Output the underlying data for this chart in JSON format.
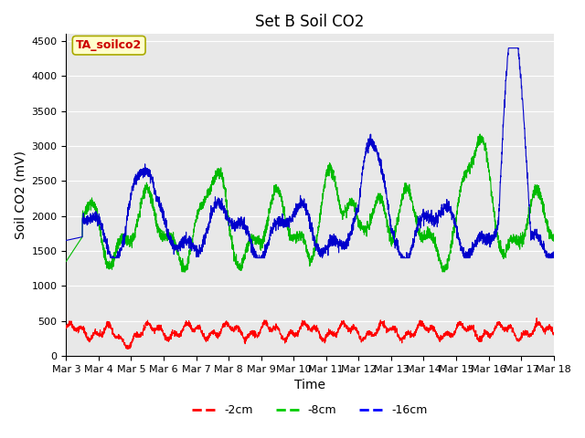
{
  "title": "Set B Soil CO2",
  "ylabel": "Soil CO2 (mV)",
  "xlabel": "Time",
  "ylim": [
    0,
    4600
  ],
  "xlim": [
    0,
    15
  ],
  "x_tick_labels": [
    "Mar 3",
    "Mar 4",
    "Mar 5",
    "Mar 6",
    "Mar 7",
    "Mar 8",
    "Mar 9",
    "Mar 10",
    "Mar 11",
    "Mar 12",
    "Mar 13",
    "Mar 14",
    "Mar 15",
    "Mar 16",
    "Mar 17",
    "Mar 18"
  ],
  "x_tick_positions": [
    0,
    1,
    2,
    3,
    4,
    5,
    6,
    7,
    8,
    9,
    10,
    11,
    12,
    13,
    14,
    15
  ],
  "legend_labels": [
    "-2cm",
    "-8cm",
    "-16cm"
  ],
  "legend_colors": [
    "#ff0000",
    "#00cc00",
    "#0000ff"
  ],
  "line_colors": [
    "#ff0000",
    "#00bb00",
    "#0000cc"
  ],
  "background_color": "#e8e8e8",
  "figure_background": "#ffffff",
  "annotation_text": "TA_soilco2",
  "annotation_color": "#cc0000",
  "annotation_bg": "#ffffcc",
  "title_fontsize": 12,
  "axis_label_fontsize": 10,
  "tick_fontsize": 8
}
